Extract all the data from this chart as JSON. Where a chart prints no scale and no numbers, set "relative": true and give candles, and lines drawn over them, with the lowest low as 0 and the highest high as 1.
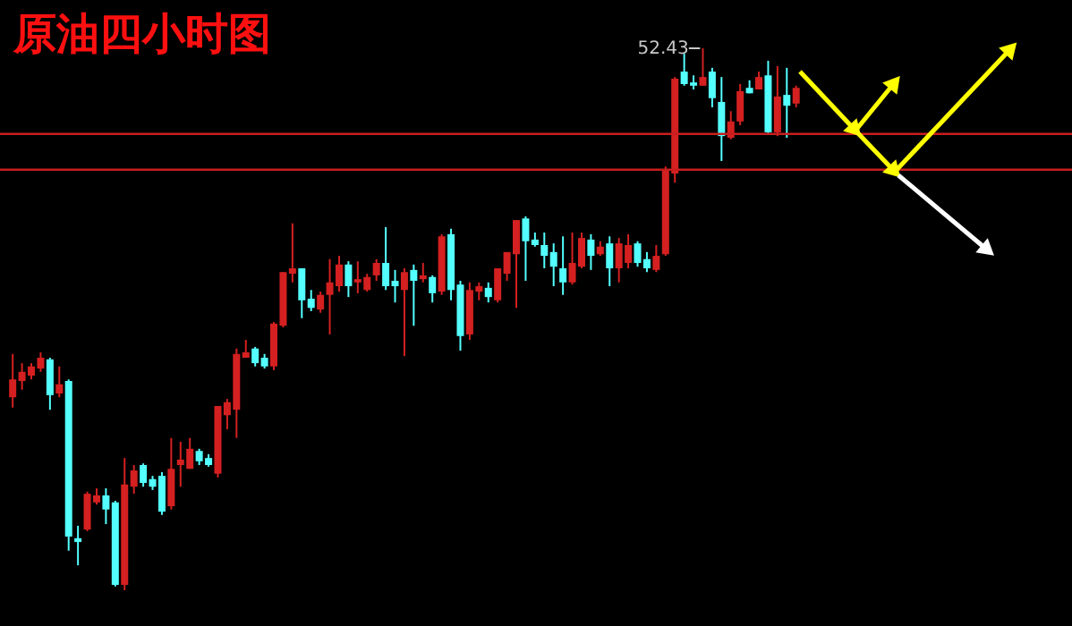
{
  "chart_data": {
    "type": "candlestick",
    "title": "原油四小时图",
    "relative": true,
    "categories": [
      null,
      null,
      null,
      null,
      null,
      null,
      null,
      null,
      null,
      null,
      null,
      null,
      null,
      null,
      null,
      null,
      null,
      null,
      null,
      null,
      null,
      null,
      null,
      null,
      null,
      null,
      null,
      null,
      null,
      null,
      null,
      null,
      null,
      null,
      null,
      null,
      null,
      null,
      null,
      null,
      null,
      null,
      null,
      null,
      null,
      null,
      null,
      null,
      null,
      null,
      null,
      null,
      null,
      null,
      null,
      null,
      null,
      null,
      null,
      null,
      null,
      null,
      null,
      null,
      null,
      null,
      null,
      null,
      null,
      null,
      null,
      null,
      null,
      null,
      null,
      null,
      null,
      null,
      null,
      null,
      null,
      null,
      null,
      null,
      null
    ],
    "ohlc": [
      [
        0.356,
        0.436,
        0.337,
        0.389
      ],
      [
        0.386,
        0.419,
        0.37,
        0.403
      ],
      [
        0.396,
        0.419,
        0.389,
        0.413
      ],
      [
        0.409,
        0.439,
        0.403,
        0.429
      ],
      [
        0.426,
        0.429,
        0.333,
        0.36
      ],
      [
        0.363,
        0.413,
        0.356,
        0.38
      ],
      [
        0.386,
        0.389,
        0.073,
        0.099
      ],
      [
        0.096,
        0.119,
        0.046,
        0.089
      ],
      [
        0.112,
        0.182,
        0.109,
        0.178
      ],
      [
        0.162,
        0.188,
        0.158,
        0.175
      ],
      [
        0.175,
        0.188,
        0.122,
        0.149
      ],
      [
        0.162,
        0.165,
        0.007,
        0.01
      ],
      [
        0.01,
        0.244,
        0,
        0.195
      ],
      [
        0.191,
        0.231,
        0.178,
        0.221
      ],
      [
        0.231,
        0.234,
        0.191,
        0.198
      ],
      [
        0.205,
        0.211,
        0.185,
        0.191
      ],
      [
        0.211,
        0.218,
        0.139,
        0.145
      ],
      [
        0.155,
        0.281,
        0.149,
        0.224
      ],
      [
        0.231,
        0.274,
        0.191,
        0.241
      ],
      [
        0.224,
        0.281,
        0.224,
        0.261
      ],
      [
        0.257,
        0.261,
        0.231,
        0.238
      ],
      [
        0.244,
        0.251,
        0.228,
        0.231
      ],
      [
        0.215,
        0.34,
        0.208,
        0.34
      ],
      [
        0.323,
        0.353,
        0.297,
        0.347
      ],
      [
        0.333,
        0.446,
        0.281,
        0.436
      ],
      [
        0.429,
        0.462,
        0.429,
        0.439
      ],
      [
        0.446,
        0.449,
        0.413,
        0.419
      ],
      [
        0.429,
        0.436,
        0.409,
        0.413
      ],
      [
        0.413,
        0.495,
        0.406,
        0.492
      ],
      [
        0.488,
        0.587,
        0.485,
        0.587
      ],
      [
        0.584,
        0.677,
        0.568,
        0.594
      ],
      [
        0.594,
        0.594,
        0.502,
        0.535
      ],
      [
        0.538,
        0.554,
        0.515,
        0.521
      ],
      [
        0.518,
        0.551,
        0.512,
        0.545
      ],
      [
        0.545,
        0.611,
        0.472,
        0.568
      ],
      [
        0.561,
        0.617,
        0.551,
        0.601
      ],
      [
        0.601,
        0.607,
        0.541,
        0.561
      ],
      [
        0.568,
        0.607,
        0.548,
        0.574
      ],
      [
        0.554,
        0.584,
        0.551,
        0.578
      ],
      [
        0.581,
        0.611,
        0.571,
        0.604
      ],
      [
        0.604,
        0.67,
        0.554,
        0.561
      ],
      [
        0.571,
        0.591,
        0.531,
        0.561
      ],
      [
        0.554,
        0.594,
        0.432,
        0.587
      ],
      [
        0.591,
        0.601,
        0.488,
        0.571
      ],
      [
        0.574,
        0.604,
        0.568,
        0.581
      ],
      [
        0.578,
        0.581,
        0.531,
        0.548
      ],
      [
        0.551,
        0.657,
        0.545,
        0.653
      ],
      [
        0.657,
        0.667,
        0.535,
        0.554
      ],
      [
        0.564,
        0.571,
        0.442,
        0.469
      ],
      [
        0.472,
        0.568,
        0.462,
        0.554
      ],
      [
        0.551,
        0.568,
        0.535,
        0.561
      ],
      [
        0.558,
        0.568,
        0.531,
        0.541
      ],
      [
        0.535,
        0.594,
        0.531,
        0.594
      ],
      [
        0.584,
        0.624,
        0.571,
        0.624
      ],
      [
        0.62,
        0.683,
        0.521,
        0.683
      ],
      [
        0.686,
        0.69,
        0.571,
        0.644
      ],
      [
        0.647,
        0.66,
        0.634,
        0.637
      ],
      [
        0.637,
        0.66,
        0.594,
        0.617
      ],
      [
        0.624,
        0.64,
        0.561,
        0.597
      ],
      [
        0.594,
        0.653,
        0.545,
        0.568
      ],
      [
        0.568,
        0.66,
        0.564,
        0.604
      ],
      [
        0.597,
        0.66,
        0.594,
        0.65
      ],
      [
        0.647,
        0.657,
        0.591,
        0.617
      ],
      [
        0.62,
        0.644,
        0.617,
        0.634
      ],
      [
        0.64,
        0.653,
        0.561,
        0.594
      ],
      [
        0.594,
        0.65,
        0.568,
        0.64
      ],
      [
        0.604,
        0.657,
        0.594,
        0.637
      ],
      [
        0.64,
        0.644,
        0.597,
        0.604
      ],
      [
        0.611,
        0.624,
        0.587,
        0.594
      ],
      [
        0.591,
        0.637,
        0.587,
        0.617
      ],
      [
        0.62,
        0.782,
        0.617,
        0.776
      ],
      [
        0.769,
        0.947,
        0.752,
        0.944
      ],
      [
        0.957,
        0.99,
        0.931,
        0.934
      ],
      [
        0.937,
        0.95,
        0.924,
        0.931
      ],
      [
        0.931,
        1,
        0.931,
        0.947
      ],
      [
        0.957,
        0.964,
        0.891,
        0.908
      ],
      [
        0.901,
        0.947,
        0.792,
        0.838
      ],
      [
        0.835,
        0.884,
        0.832,
        0.865
      ],
      [
        0.865,
        0.934,
        0.858,
        0.921
      ],
      [
        0.927,
        0.941,
        0.917,
        0.917
      ],
      [
        0.924,
        0.957,
        0.924,
        0.947
      ],
      [
        0.95,
        0.977,
        0.842,
        0.845
      ],
      [
        0.845,
        0.967,
        0.838,
        0.911
      ],
      [
        0.914,
        0.964,
        0.835,
        0.894
      ],
      [
        0.898,
        0.931,
        0.891,
        0.927
      ]
    ],
    "colors": [
      "#d42020",
      "#d42020",
      "#d42020",
      "#d42020",
      "#54ffff",
      "#d42020",
      "#54ffff",
      "#54ffff",
      "#d42020",
      "#d42020",
      "#54ffff",
      "#54ffff",
      "#d42020",
      "#d42020",
      "#54ffff",
      "#54ffff",
      "#54ffff",
      "#d42020",
      "#d42020",
      "#d42020",
      "#54ffff",
      "#54ffff",
      "#d42020",
      "#d42020",
      "#d42020",
      "#d42020",
      "#54ffff",
      "#54ffff",
      "#d42020",
      "#d42020",
      "#d42020",
      "#54ffff",
      "#54ffff",
      "#d42020",
      "#d42020",
      "#d42020",
      "#54ffff",
      "#d42020",
      "#d42020",
      "#d42020",
      "#54ffff",
      "#54ffff",
      "#d42020",
      "#54ffff",
      "#d42020",
      "#54ffff",
      "#d42020",
      "#54ffff",
      "#54ffff",
      "#d42020",
      "#d42020",
      "#54ffff",
      "#d42020",
      "#d42020",
      "#d42020",
      "#54ffff",
      "#54ffff",
      "#54ffff",
      "#54ffff",
      "#54ffff",
      "#d42020",
      "#d42020",
      "#54ffff",
      "#d42020",
      "#54ffff",
      "#d42020",
      "#d42020",
      "#54ffff",
      "#54ffff",
      "#d42020",
      "#d42020",
      "#d42020",
      "#54ffff",
      "#54ffff",
      "#d42020",
      "#54ffff",
      "#54ffff",
      "#d42020",
      "#d42020",
      "#54ffff",
      "#d42020",
      "#54ffff",
      "#d42020",
      "#54ffff",
      "#d42020"
    ],
    "ref_lines": [
      {
        "axis": "y",
        "value": 0.842,
        "color": "#c81e1e"
      },
      {
        "axis": "y",
        "value": 0.776,
        "color": "#c81e1e"
      }
    ],
    "annotations": [
      "52.43"
    ]
  }
}
